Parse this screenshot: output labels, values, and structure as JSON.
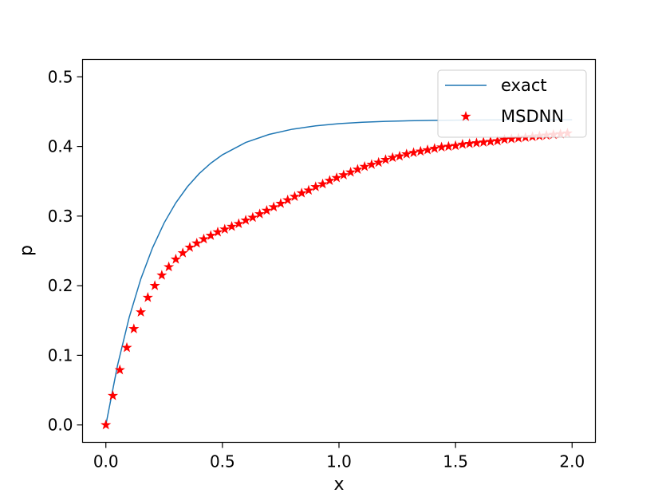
{
  "chart_data": {
    "type": "line",
    "title": "",
    "xlabel": "x",
    "ylabel": "p",
    "xlim": [
      -0.1,
      2.1
    ],
    "ylim": [
      -0.025,
      0.525
    ],
    "xticks": [
      0.0,
      0.5,
      1.0,
      1.5,
      2.0
    ],
    "xtick_labels": [
      "0.0",
      "0.5",
      "1.0",
      "1.5",
      "2.0"
    ],
    "yticks": [
      0.0,
      0.1,
      0.2,
      0.3,
      0.4,
      0.5
    ],
    "ytick_labels": [
      "0.0",
      "0.1",
      "0.2",
      "0.3",
      "0.4",
      "0.5"
    ],
    "grid": false,
    "legend": "upper-right",
    "series": [
      {
        "name": "exact",
        "kind": "line",
        "color": "#1f77b4",
        "x": [
          0.0,
          0.05,
          0.1,
          0.15,
          0.2,
          0.25,
          0.3,
          0.35,
          0.4,
          0.45,
          0.5,
          0.6,
          0.7,
          0.8,
          0.9,
          1.0,
          1.1,
          1.2,
          1.3,
          1.4,
          1.5,
          1.6,
          1.7,
          1.8,
          1.9,
          2.0
        ],
        "y": [
          0.0,
          0.0855,
          0.1544,
          0.2098,
          0.2543,
          0.2902,
          0.319,
          0.3422,
          0.3609,
          0.3759,
          0.388,
          0.4058,
          0.4173,
          0.4248,
          0.4296,
          0.4328,
          0.4348,
          0.4361,
          0.4369,
          0.4375,
          0.4378,
          0.438,
          0.4382,
          0.4383,
          0.4384,
          0.4384
        ]
      },
      {
        "name": "MSDNN",
        "kind": "scatter",
        "marker": "star",
        "color": "#ff0000",
        "x": [
          0.0,
          0.03,
          0.06,
          0.09,
          0.12,
          0.15,
          0.18,
          0.21,
          0.24,
          0.27,
          0.3,
          0.33,
          0.36,
          0.39,
          0.42,
          0.45,
          0.48,
          0.51,
          0.54,
          0.57,
          0.6,
          0.63,
          0.66,
          0.69,
          0.72,
          0.75,
          0.78,
          0.81,
          0.84,
          0.87,
          0.9,
          0.93,
          0.96,
          0.99,
          1.02,
          1.05,
          1.08,
          1.11,
          1.14,
          1.17,
          1.2,
          1.23,
          1.26,
          1.29,
          1.32,
          1.35,
          1.38,
          1.41,
          1.44,
          1.47,
          1.5,
          1.53,
          1.56,
          1.59,
          1.62,
          1.65,
          1.68,
          1.71,
          1.74,
          1.77,
          1.8,
          1.83,
          1.86,
          1.89,
          1.92,
          1.95,
          1.98
        ],
        "y": [
          0.0,
          0.042,
          0.079,
          0.111,
          0.138,
          0.162,
          0.183,
          0.2,
          0.215,
          0.227,
          0.238,
          0.247,
          0.255,
          0.261,
          0.267,
          0.272,
          0.277,
          0.281,
          0.285,
          0.289,
          0.294,
          0.298,
          0.303,
          0.308,
          0.313,
          0.318,
          0.323,
          0.328,
          0.333,
          0.337,
          0.342,
          0.346,
          0.351,
          0.355,
          0.359,
          0.363,
          0.367,
          0.371,
          0.374,
          0.377,
          0.381,
          0.384,
          0.386,
          0.389,
          0.391,
          0.393,
          0.395,
          0.397,
          0.399,
          0.4,
          0.401,
          0.403,
          0.404,
          0.405,
          0.406,
          0.407,
          0.408,
          0.41,
          0.411,
          0.412,
          0.413,
          0.414,
          0.415,
          0.416,
          0.417,
          0.418,
          0.419
        ]
      }
    ]
  }
}
